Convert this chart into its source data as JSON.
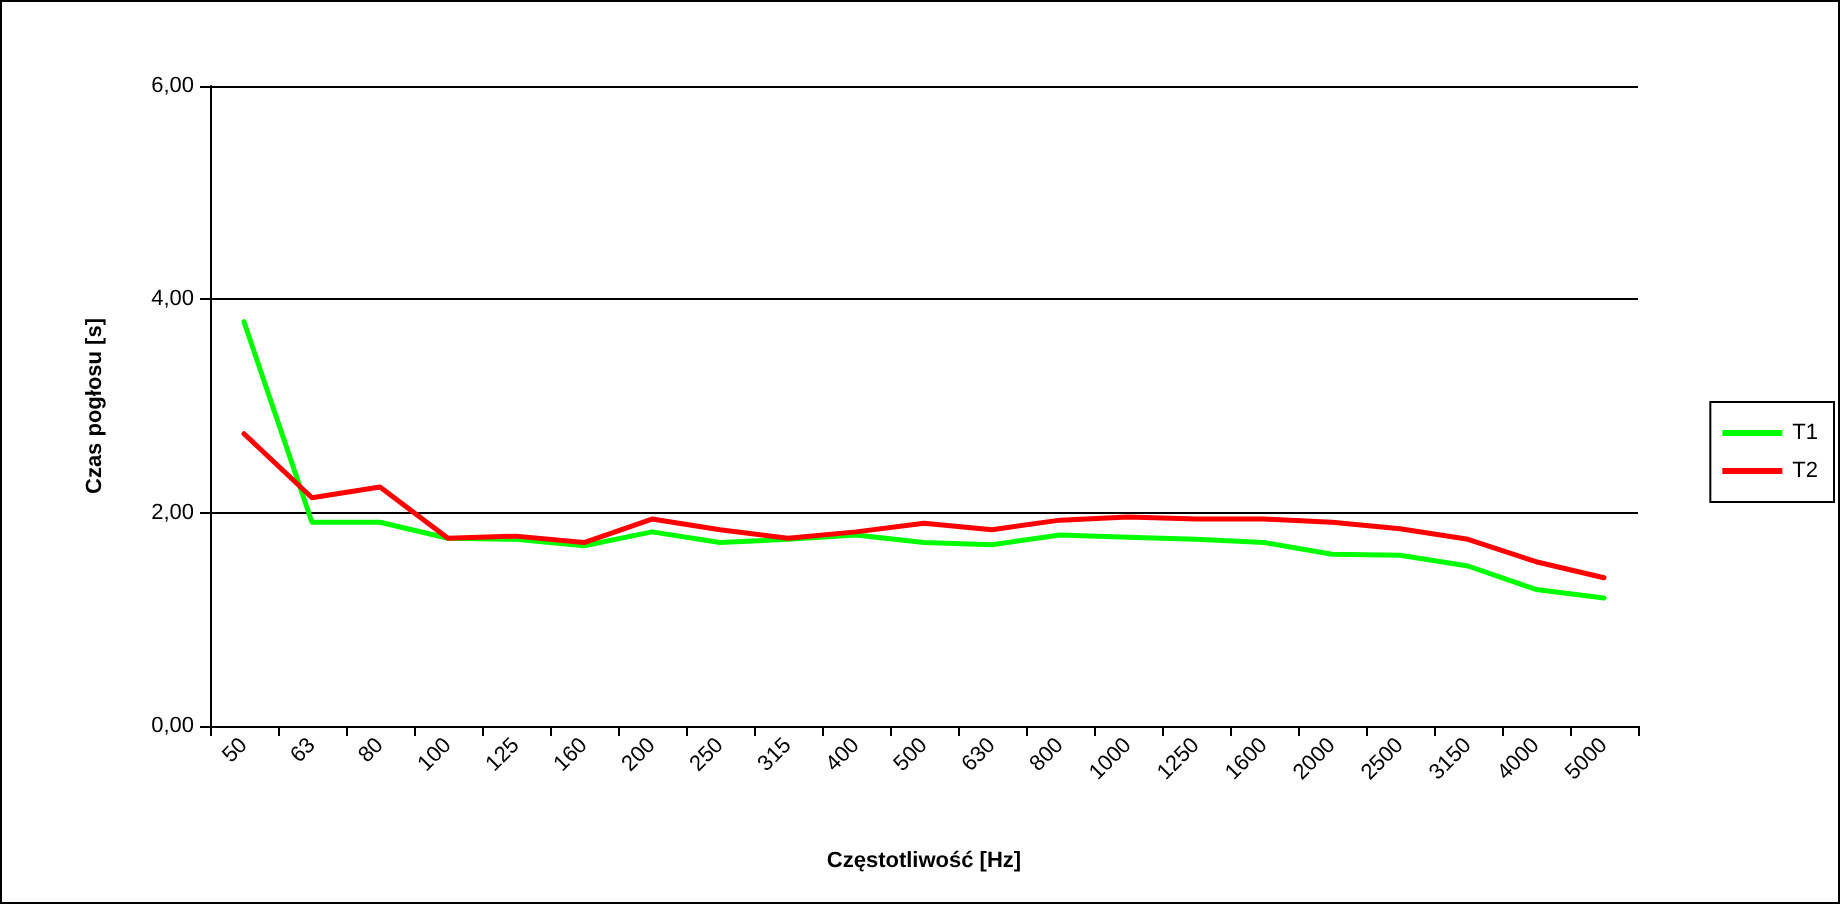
{
  "chart_data": {
    "type": "line",
    "xlabel": "Częstotliwość [Hz]",
    "ylabel": "Czas pogłosu [s]",
    "categories": [
      "50",
      "63",
      "80",
      "100",
      "125",
      "160",
      "200",
      "250",
      "315",
      "400",
      "500",
      "630",
      "800",
      "1000",
      "1250",
      "1600",
      "2000",
      "2500",
      "3150",
      "4000",
      "5000"
    ],
    "series": [
      {
        "name": "T1",
        "color": "#00ff00",
        "values": [
          3.79,
          1.91,
          1.91,
          1.76,
          1.75,
          1.69,
          1.82,
          1.72,
          1.75,
          1.79,
          1.72,
          1.7,
          1.79,
          1.77,
          1.75,
          1.72,
          1.61,
          1.6,
          1.5,
          1.28,
          1.2
        ]
      },
      {
        "name": "T2",
        "color": "#ff0000",
        "values": [
          2.74,
          2.14,
          2.24,
          1.76,
          1.78,
          1.72,
          1.94,
          1.84,
          1.76,
          1.82,
          1.9,
          1.84,
          1.93,
          1.96,
          1.94,
          1.94,
          1.91,
          1.85,
          1.75,
          1.54,
          1.39
        ]
      }
    ],
    "ylim": [
      0,
      6
    ],
    "yticks": [
      {
        "value": 0,
        "label": "0,00"
      },
      {
        "value": 2,
        "label": "2,00"
      },
      {
        "value": 4,
        "label": "4,00"
      },
      {
        "value": 6,
        "label": "6,00"
      }
    ],
    "grid": "y",
    "legend": "right",
    "marker": "none",
    "line_style": "solid"
  }
}
